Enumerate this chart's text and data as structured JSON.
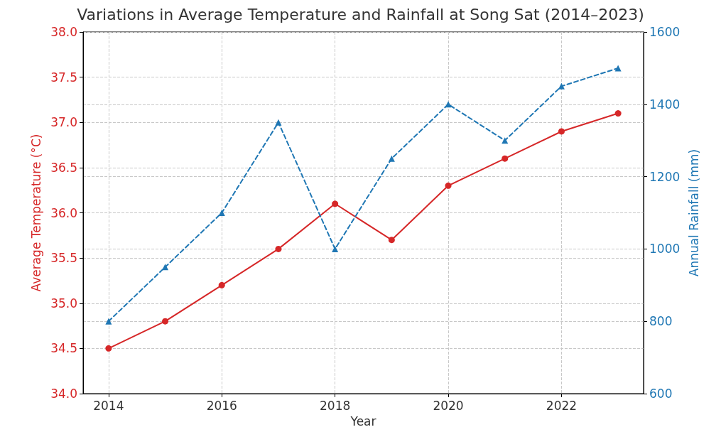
{
  "chart_data": {
    "type": "line",
    "title": "Variations in Average Temperature and Rainfall at Song Sat (2014–2023)",
    "xlabel": "Year",
    "ylabel": "Average Temperature (°C)",
    "y2label": "Annual Rainfall (mm)",
    "x": [
      2014,
      2015,
      2016,
      2017,
      2018,
      2019,
      2020,
      2021,
      2022,
      2023
    ],
    "series": [
      {
        "color": "#d62728",
        "marker": "circle",
        "line_style": "solid",
        "values": [
          34.5,
          34.8,
          35.2,
          35.6,
          36.1,
          35.7,
          36.3,
          36.6,
          36.9,
          37.1
        ]
      },
      {
        "color": "#1f77b4",
        "marker": "triangle",
        "line_style": "dashed",
        "axis": "y2",
        "values": [
          800,
          950,
          1100,
          1350,
          1000,
          1250,
          1400,
          1300,
          1450,
          1500
        ]
      }
    ],
    "xlim": [
      2013.55,
      2023.45
    ],
    "xticks": [
      2014,
      2016,
      2018,
      2020,
      2022
    ],
    "ylim": [
      34.0,
      38.0
    ],
    "yticks": [
      {
        "value": 34.0,
        "label": "34.0"
      },
      {
        "value": 34.5,
        "label": "34.5"
      },
      {
        "value": 35.0,
        "label": "35.0"
      },
      {
        "value": 35.5,
        "label": "35.5"
      },
      {
        "value": 36.0,
        "label": "36.0"
      },
      {
        "value": 36.5,
        "label": "36.5"
      },
      {
        "value": 37.0,
        "label": "37.0"
      },
      {
        "value": 37.5,
        "label": "37.5"
      },
      {
        "value": 38.0,
        "label": "38.0"
      }
    ],
    "y2lim": [
      600,
      1600
    ],
    "y2ticks": [
      600,
      800,
      1000,
      1200,
      1400,
      1600
    ],
    "grid": true
  }
}
